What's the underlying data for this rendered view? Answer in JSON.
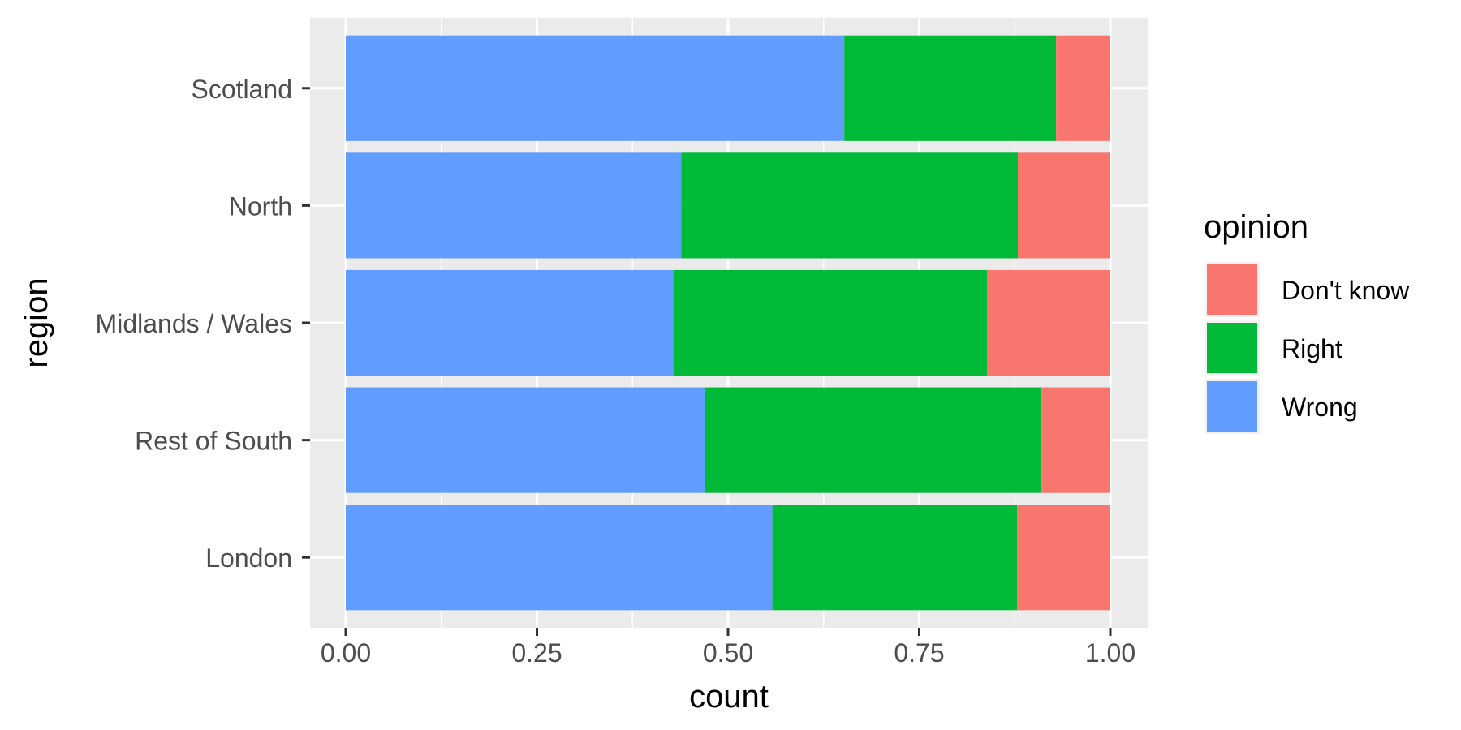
{
  "chart_data": {
    "type": "bar",
    "orientation": "horizontal",
    "stacked": true,
    "position": "fill",
    "title": "",
    "xlabel": "count",
    "ylabel": "region",
    "xlim": [
      0,
      1
    ],
    "x_ticks": [
      "0.00",
      "0.25",
      "0.50",
      "0.75",
      "1.00"
    ],
    "grid": true,
    "categories": [
      "Scotland",
      "North",
      "Midlands / Wales",
      "Rest of South",
      "London"
    ],
    "series": [
      {
        "name": "Wrong",
        "color": "#619CFF",
        "values": [
          0.652,
          0.439,
          0.429,
          0.47,
          0.558
        ]
      },
      {
        "name": "Right",
        "color": "#00BA38",
        "values": [
          0.277,
          0.44,
          0.41,
          0.44,
          0.32
        ]
      },
      {
        "name": "Don't know",
        "color": "#F8766D",
        "values": [
          0.071,
          0.121,
          0.161,
          0.09,
          0.122
        ]
      }
    ],
    "legend": {
      "title": "opinion",
      "position": "right",
      "items": [
        {
          "label": "Don't know",
          "color": "#F8766D"
        },
        {
          "label": "Right",
          "color": "#00BA38"
        },
        {
          "label": "Wrong",
          "color": "#619CFF"
        }
      ]
    }
  }
}
